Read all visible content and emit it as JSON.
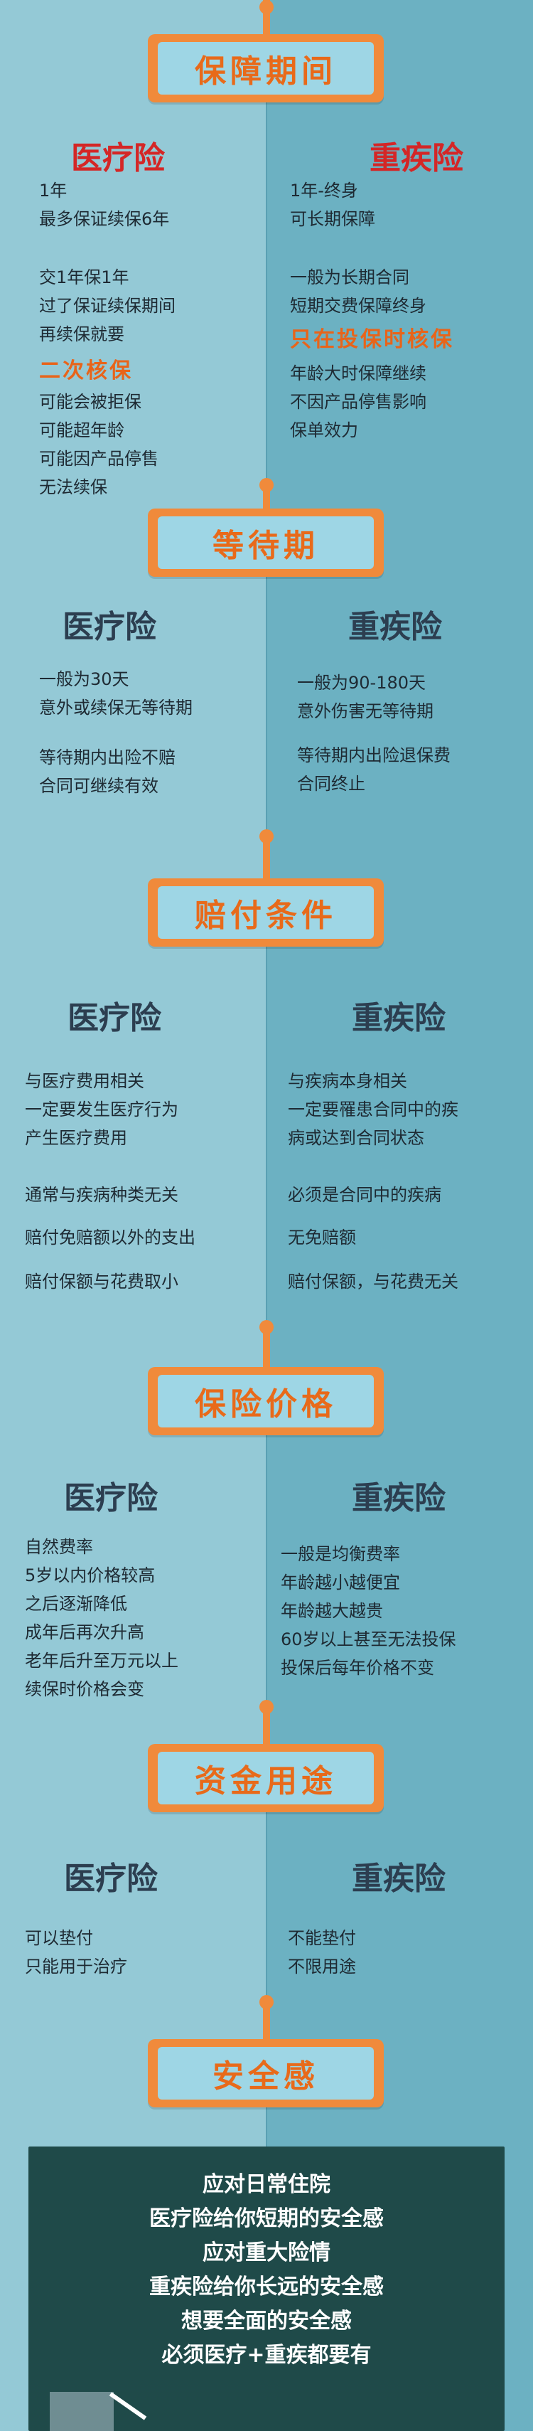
{
  "colors": {
    "banner": "#f08a3b",
    "banner_inner": "#9ed6e5",
    "left_bg": "#94c9d6",
    "right_bg": "#6cb1c2",
    "red_title": "#d42626",
    "dark_title": "#2c3e50",
    "emphasis": "#e8641a",
    "board": "#1f4a49"
  },
  "sections": {
    "s1": {
      "title": "保障期间",
      "left": {
        "title": "医疗险",
        "p1": "1年\n最多保证续保6年",
        "p2": "交1年保1年\n过了保证续保期间\n再续保就要",
        "emph": "二次核保",
        "p3": "可能会被拒保\n可能超年龄\n可能因产品停售\n无法续保"
      },
      "right": {
        "title": "重疾险",
        "p1": "1年-终身\n可长期保障",
        "p2": "一般为长期合同\n短期交费保障终身",
        "emph": "只在投保时核保",
        "p3": "年龄大时保障继续\n不因产品停售影响\n保单效力"
      }
    },
    "s2": {
      "title": "等待期",
      "left": {
        "title": "医疗险",
        "p1": "一般为30天\n意外或续保无等待期",
        "p2": "等待期内出险不赔\n合同可继续有效"
      },
      "right": {
        "title": "重疾险",
        "p1": "一般为90-180天\n意外伤害无等待期",
        "p2": "等待期内出险退保费\n合同终止"
      }
    },
    "s3": {
      "title": "赔付条件",
      "left": {
        "title": "医疗险",
        "p1": "与医疗费用相关\n一定要发生医疗行为\n产生医疗费用",
        "p2": "通常与疾病种类无关",
        "p3": "赔付免赔额以外的支出",
        "p4": "赔付保额与花费取小"
      },
      "right": {
        "title": "重疾险",
        "p1": "与疾病本身相关\n一定要罹患合同中的疾\n病或达到合同状态",
        "p2": "必须是合同中的疾病",
        "p3": "无免赔额",
        "p4": "赔付保额，与花费无关"
      }
    },
    "s4": {
      "title": "保险价格",
      "left": {
        "title": "医疗险",
        "p1": "自然费率\n5岁以内价格较高\n之后逐渐降低\n成年后再次升高\n老年后升至万元以上\n续保时价格会变"
      },
      "right": {
        "title": "重疾险",
        "p1": "一般是均衡费率\n年龄越小越便宜\n年龄越大越贵\n60岁以上甚至无法投保\n投保后每年价格不变"
      }
    },
    "s5": {
      "title": "资金用途",
      "left": {
        "title": "医疗险",
        "p1": "可以垫付\n只能用于治疗"
      },
      "right": {
        "title": "重疾险",
        "p1": "不能垫付\n不限用途"
      }
    },
    "s6": {
      "title": "安全感",
      "board_text": "应对日常住院\n医疗险给你短期的安全感\n应对重大险情\n重疾险给你长远的安全感\n想要全面的安全感\n必须医疗+重疾都要有"
    }
  }
}
